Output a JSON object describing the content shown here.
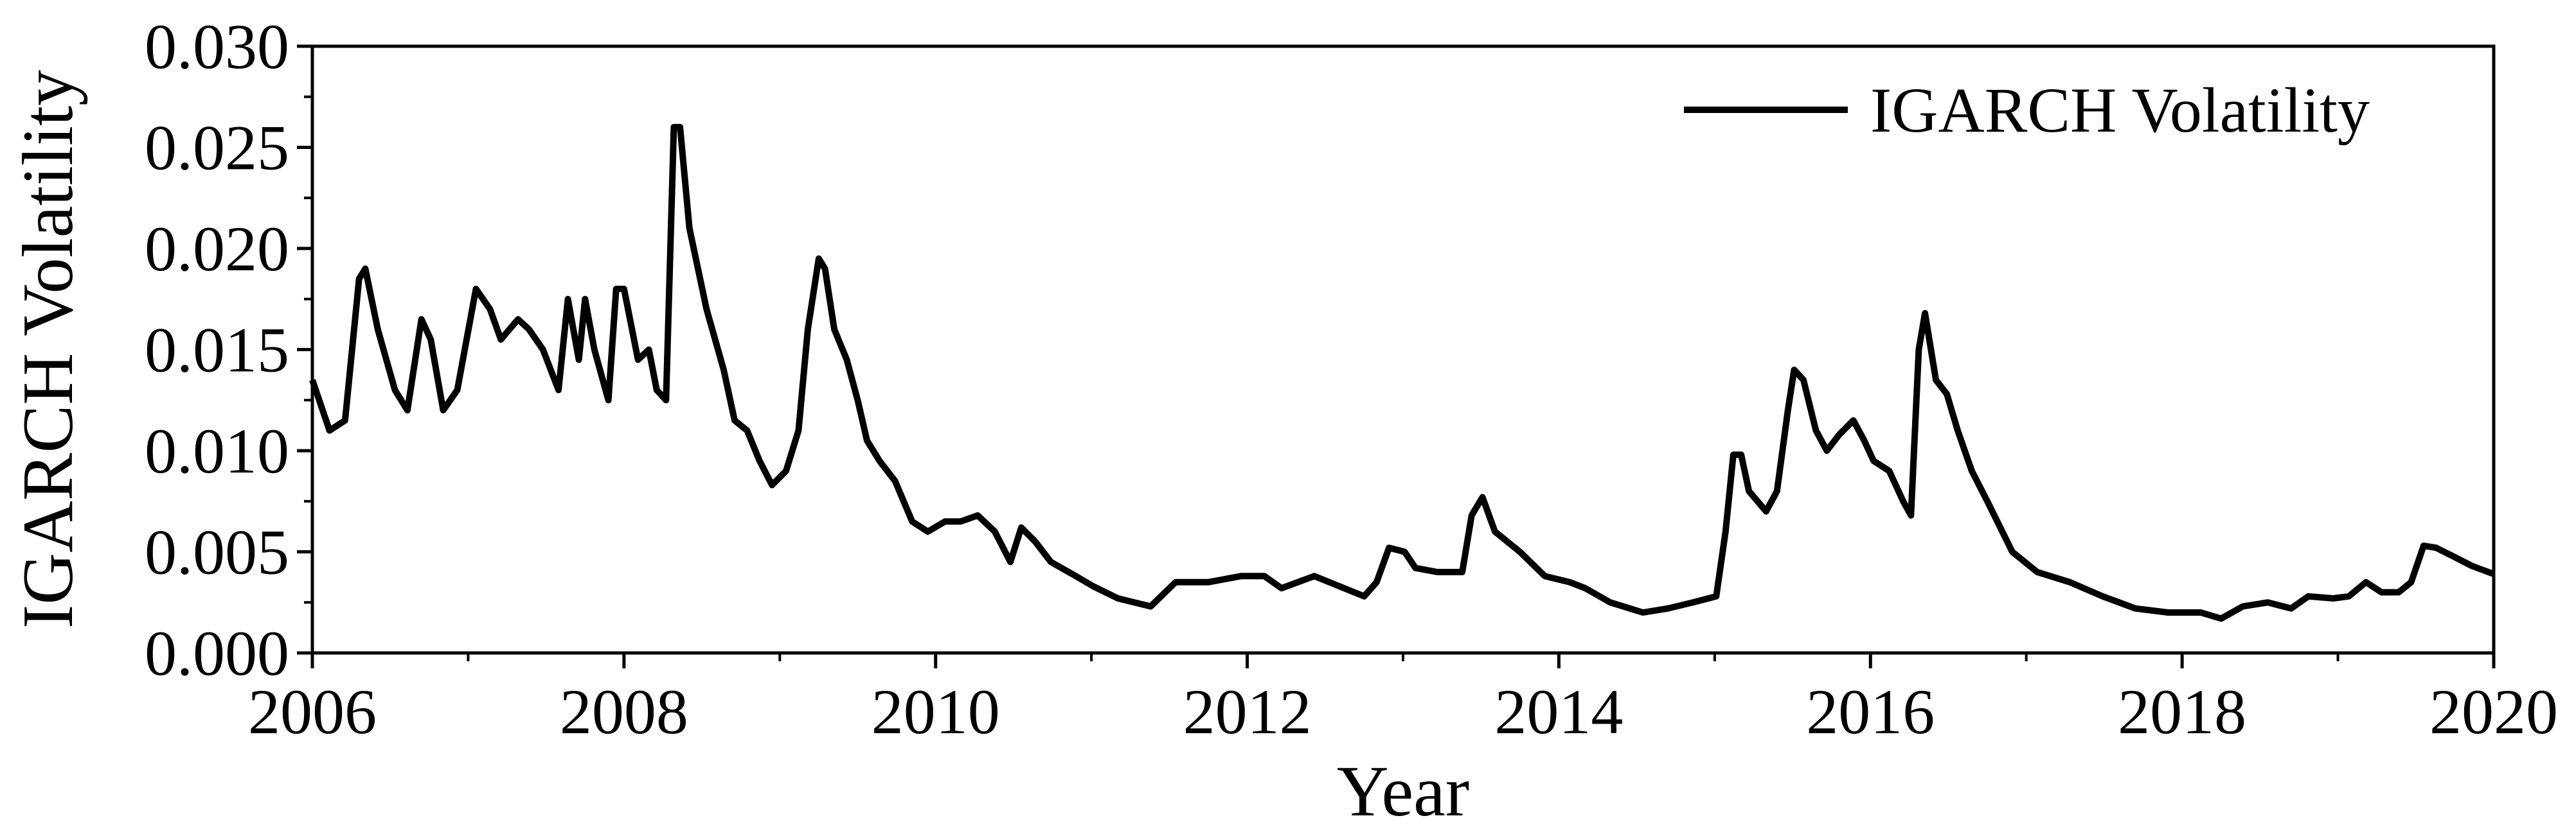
{
  "chart_data": {
    "type": "line",
    "x_label": "Year",
    "y_label": "IGARCH Volatility",
    "xlim": [
      2006,
      2020
    ],
    "xticks": [
      2006,
      2008,
      2010,
      2012,
      2014,
      2016,
      2018,
      2020
    ],
    "ylim": [
      0,
      0.03
    ],
    "yticks": [
      {
        "value": 0,
        "label": "0.000"
      },
      {
        "value": 0.005,
        "label": "0.005"
      },
      {
        "value": 0.01,
        "label": "0.010"
      },
      {
        "value": 0.015,
        "label": "0.015"
      },
      {
        "value": 0.02,
        "label": "0.020"
      },
      {
        "value": 0.025,
        "label": "0.025"
      },
      {
        "value": 0.03,
        "label": "0.030"
      }
    ],
    "legend": "upper right",
    "x": [
      2006.0,
      2006.11,
      2006.21,
      2006.3,
      2006.34,
      2006.42,
      2006.53,
      2006.61,
      2006.7,
      2006.76,
      2006.84,
      2006.93,
      2007.05,
      2007.14,
      2007.21,
      2007.32,
      2007.39,
      2007.48,
      2007.58,
      2007.64,
      2007.71,
      2007.75,
      2007.81,
      2007.9,
      2007.95,
      2008.0,
      2008.09,
      2008.16,
      2008.21,
      2008.27,
      2008.32,
      2008.36,
      2008.42,
      2008.53,
      2008.64,
      2008.71,
      2008.79,
      2008.87,
      2008.95,
      2009.04,
      2009.12,
      2009.18,
      2009.25,
      2009.29,
      2009.35,
      2009.43,
      2009.5,
      2009.56,
      2009.64,
      2009.74,
      2009.85,
      2009.95,
      2010.06,
      2010.16,
      2010.27,
      2010.38,
      2010.48,
      2010.55,
      2010.64,
      2010.74,
      2010.9,
      2011.01,
      2011.17,
      2011.38,
      2011.54,
      2011.75,
      2011.96,
      2012.11,
      2012.22,
      2012.43,
      2012.59,
      2012.75,
      2012.83,
      2012.91,
      2013.01,
      2013.08,
      2013.22,
      2013.38,
      2013.44,
      2013.51,
      2013.59,
      2013.75,
      2013.91,
      2014.07,
      2014.17,
      2014.33,
      2014.54,
      2014.7,
      2014.86,
      2015.01,
      2015.07,
      2015.12,
      2015.17,
      2015.22,
      2015.33,
      2015.4,
      2015.47,
      2015.51,
      2015.57,
      2015.65,
      2015.72,
      2015.8,
      2015.89,
      2015.96,
      2016.02,
      2016.12,
      2016.21,
      2016.26,
      2016.31,
      2016.35,
      2016.42,
      2016.49,
      2016.56,
      2016.65,
      2016.75,
      2016.91,
      2017.07,
      2017.28,
      2017.49,
      2017.7,
      2017.91,
      2018.12,
      2018.25,
      2018.39,
      2018.55,
      2018.7,
      2018.81,
      2018.97,
      2019.07,
      2019.18,
      2019.28,
      2019.39,
      2019.47,
      2019.55,
      2019.63,
      2019.76,
      2019.86,
      2020.0
    ],
    "series": [
      {
        "name": "IGARCH Volatility",
        "color": "#000000",
        "values": [
          0.0135,
          0.011,
          0.0115,
          0.0185,
          0.019,
          0.016,
          0.013,
          0.012,
          0.0165,
          0.0155,
          0.012,
          0.013,
          0.018,
          0.017,
          0.0155,
          0.0165,
          0.016,
          0.015,
          0.013,
          0.0175,
          0.0145,
          0.0175,
          0.015,
          0.0125,
          0.018,
          0.018,
          0.0145,
          0.015,
          0.013,
          0.0125,
          0.026,
          0.026,
          0.021,
          0.017,
          0.014,
          0.0115,
          0.011,
          0.0095,
          0.0083,
          0.009,
          0.011,
          0.016,
          0.0195,
          0.019,
          0.016,
          0.0145,
          0.0125,
          0.0105,
          0.0095,
          0.0085,
          0.0065,
          0.006,
          0.0065,
          0.0065,
          0.0068,
          0.006,
          0.0045,
          0.0062,
          0.0055,
          0.0045,
          0.0038,
          0.0033,
          0.0027,
          0.0023,
          0.0035,
          0.0035,
          0.0038,
          0.0038,
          0.0032,
          0.0038,
          0.0033,
          0.0028,
          0.0035,
          0.0052,
          0.005,
          0.0042,
          0.004,
          0.004,
          0.0068,
          0.0077,
          0.006,
          0.005,
          0.0038,
          0.0035,
          0.0032,
          0.0025,
          0.002,
          0.0022,
          0.0025,
          0.0028,
          0.006,
          0.0098,
          0.0098,
          0.008,
          0.007,
          0.008,
          0.012,
          0.014,
          0.0135,
          0.011,
          0.01,
          0.0108,
          0.0115,
          0.0105,
          0.0095,
          0.009,
          0.0075,
          0.0068,
          0.015,
          0.0168,
          0.0135,
          0.0128,
          0.011,
          0.009,
          0.0075,
          0.005,
          0.004,
          0.0035,
          0.0028,
          0.0022,
          0.002,
          0.002,
          0.0017,
          0.0023,
          0.0025,
          0.0022,
          0.0028,
          0.0027,
          0.0028,
          0.0035,
          0.003,
          0.003,
          0.0035,
          0.0053,
          0.0052,
          0.0047,
          0.0043,
          0.0039
        ]
      }
    ]
  }
}
